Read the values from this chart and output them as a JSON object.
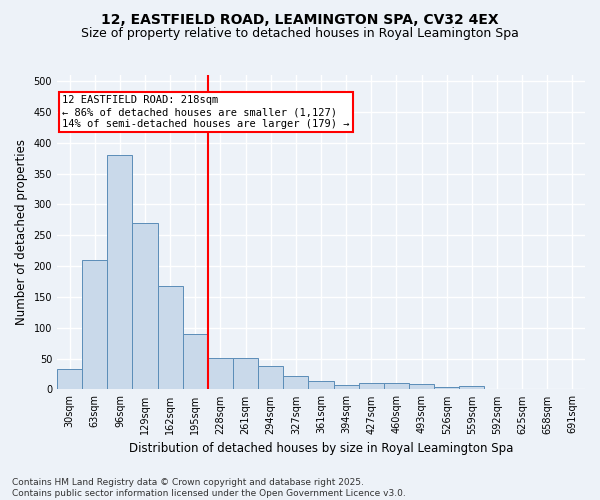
{
  "title": "12, EASTFIELD ROAD, LEAMINGTON SPA, CV32 4EX",
  "subtitle": "Size of property relative to detached houses in Royal Leamington Spa",
  "xlabel": "Distribution of detached houses by size in Royal Leamington Spa",
  "ylabel": "Number of detached properties",
  "footer": "Contains HM Land Registry data © Crown copyright and database right 2025.\nContains public sector information licensed under the Open Government Licence v3.0.",
  "categories": [
    "30sqm",
    "63sqm",
    "96sqm",
    "129sqm",
    "162sqm",
    "195sqm",
    "228sqm",
    "261sqm",
    "294sqm",
    "327sqm",
    "361sqm",
    "394sqm",
    "427sqm",
    "460sqm",
    "493sqm",
    "526sqm",
    "559sqm",
    "592sqm",
    "625sqm",
    "658sqm",
    "691sqm"
  ],
  "values": [
    33,
    210,
    380,
    270,
    168,
    90,
    51,
    51,
    38,
    22,
    13,
    7,
    11,
    11,
    9,
    4,
    5,
    0,
    0,
    1,
    0
  ],
  "bar_color": "#c9d9ea",
  "bar_edge_color": "#5b8db8",
  "vline_color": "red",
  "vline_index": 6,
  "annotation_text": "12 EASTFIELD ROAD: 218sqm\n← 86% of detached houses are smaller (1,127)\n14% of semi-detached houses are larger (179) →",
  "annotation_box_color": "white",
  "annotation_box_edge_color": "red",
  "ylim": [
    0,
    510
  ],
  "yticks": [
    0,
    50,
    100,
    150,
    200,
    250,
    300,
    350,
    400,
    450,
    500
  ],
  "background_color": "#edf2f8",
  "grid_color": "white",
  "title_fontsize": 10,
  "subtitle_fontsize": 9,
  "axis_label_fontsize": 8.5,
  "tick_fontsize": 7,
  "annotation_fontsize": 7.5,
  "footer_fontsize": 6.5
}
